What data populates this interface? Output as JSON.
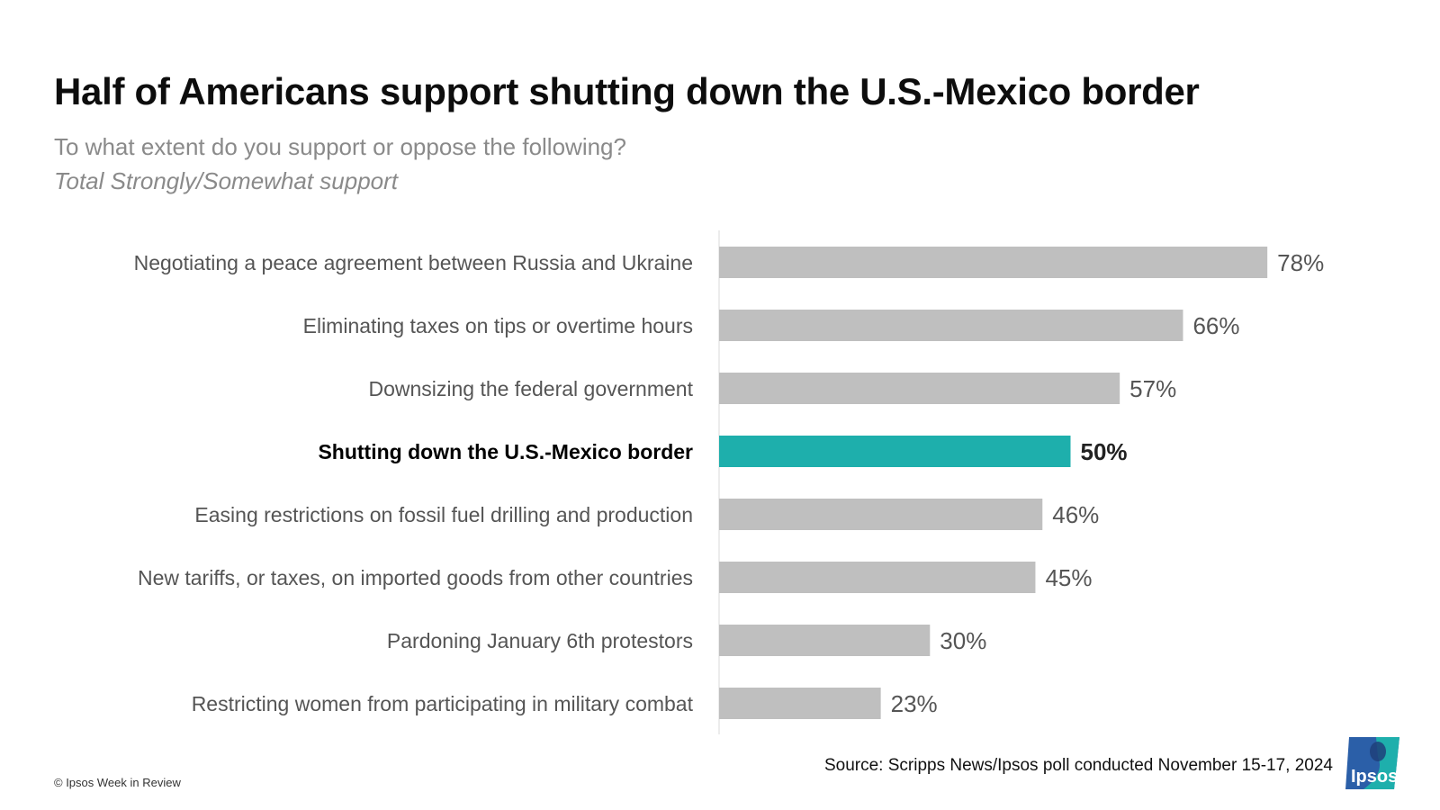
{
  "header": {
    "title": "Half of Americans support shutting down the U.S.-Mexico border",
    "subtitle": "To what extent do you support or oppose the following?",
    "subnote": "Total Strongly/Somewhat support"
  },
  "chart_data": {
    "type": "bar",
    "orientation": "horizontal",
    "categories": [
      "Negotiating a peace agreement between Russia and Ukraine",
      "Eliminating taxes on tips or overtime hours",
      "Downsizing the federal government",
      "Shutting down the U.S.-Mexico border",
      "Easing restrictions on fossil fuel drilling and production",
      "New tariffs, or taxes, on imported goods from other countries",
      "Pardoning January 6th protestors",
      "Restricting women from participating in military combat"
    ],
    "values": [
      78,
      66,
      57,
      50,
      46,
      45,
      30,
      23
    ],
    "value_labels": [
      "78%",
      "66%",
      "57%",
      "50%",
      "46%",
      "45%",
      "30%",
      "23%"
    ],
    "highlight_index": 3,
    "xlim": [
      0,
      100
    ],
    "grid": false,
    "legend": "none",
    "colors": {
      "bar": "#bfbfbf",
      "highlight": "#1eafac",
      "axis": "#d9d9d9"
    }
  },
  "footer": {
    "source": "Source: Scripps News/Ipsos poll conducted November 15-17, 2024",
    "copyright": "© Ipsos Week in Review",
    "logo_text": "Ipsos",
    "logo_color": "#2b5fa8",
    "logo_accent": "#1eafac"
  }
}
